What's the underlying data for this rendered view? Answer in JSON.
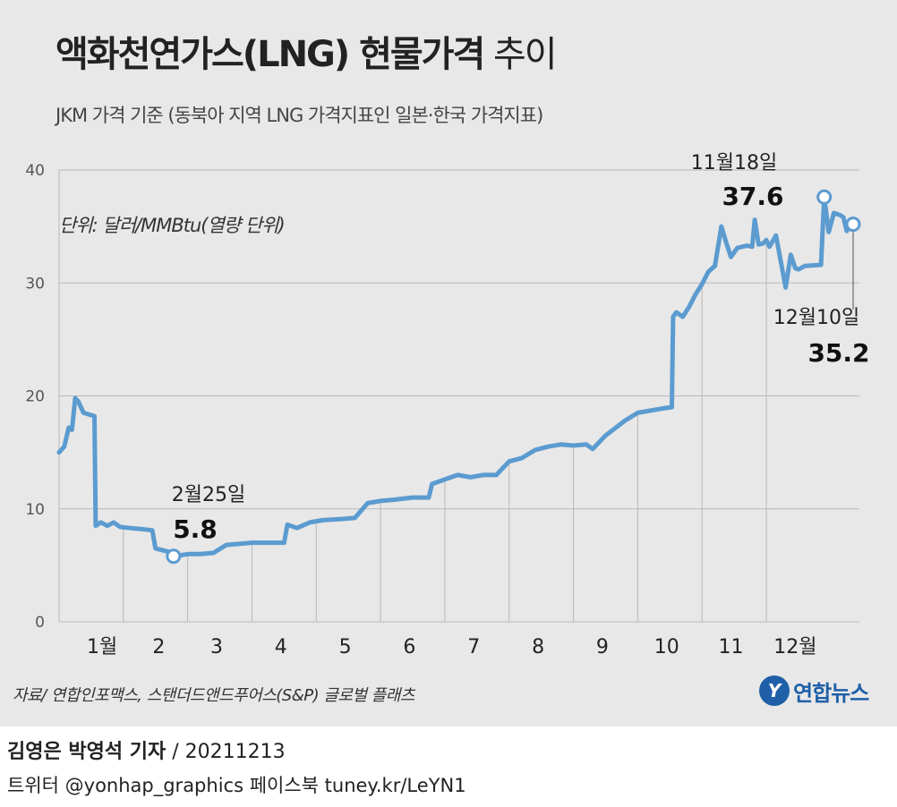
{
  "title_bold": "액화천연가스(LNG) 현물가격",
  "title_light": " 추이",
  "subtitle": "JKM 가격 기준 (동북아 지역 LNG 가격지표인 일본·한국 가격지표)",
  "unit": "단위: 달러/MMBtu(열량 단위)",
  "source": "자료/ 연합인포맥스, 스탠더드앤드푸어스(S&P) 글로벌 플래츠",
  "logo": {
    "mark": "Y",
    "text": "연합뉴스",
    "color": "#1e5fa8"
  },
  "credit": {
    "names": "김영은 박영석 기자",
    "date": " / 20211213"
  },
  "social": "트위터 @yonhap_graphics  페이스북 tuney.kr/LeYN1",
  "colors": {
    "line": "#5b9bd0",
    "grid": "#b8b8b8",
    "background": "#e8e8e8"
  },
  "chart_data": {
    "type": "line",
    "ylim": [
      0,
      40
    ],
    "y_ticks": [
      0,
      10,
      20,
      30,
      40
    ],
    "grid": "horizontal",
    "x_range": [
      0,
      12.35
    ],
    "month_labels": [
      {
        "label": "1월",
        "pos": 0.67
      },
      {
        "label": "2",
        "pos": 1.55
      },
      {
        "label": "3",
        "pos": 2.45
      },
      {
        "label": "4",
        "pos": 3.45
      },
      {
        "label": "5",
        "pos": 4.45
      },
      {
        "label": "6",
        "pos": 5.45
      },
      {
        "label": "7",
        "pos": 6.45
      },
      {
        "label": "8",
        "pos": 7.45
      },
      {
        "label": "9",
        "pos": 8.45
      },
      {
        "label": "10",
        "pos": 9.45
      },
      {
        "label": "11",
        "pos": 10.45
      },
      {
        "label": "12월",
        "pos": 11.45
      }
    ],
    "month_boundaries": [
      0,
      1,
      2,
      3,
      4,
      5,
      6,
      7,
      8,
      9,
      10,
      11
    ],
    "series": [
      {
        "points": [
          [
            0.0,
            15.0
          ],
          [
            0.08,
            15.5
          ],
          [
            0.15,
            17.2
          ],
          [
            0.2,
            17.0
          ],
          [
            0.25,
            19.8
          ],
          [
            0.3,
            19.5
          ],
          [
            0.38,
            18.5
          ],
          [
            0.5,
            18.3
          ],
          [
            0.55,
            18.2
          ],
          [
            0.57,
            8.5
          ],
          [
            0.65,
            8.8
          ],
          [
            0.75,
            8.5
          ],
          [
            0.85,
            8.8
          ],
          [
            0.95,
            8.4
          ],
          [
            1.1,
            8.3
          ],
          [
            1.3,
            8.2
          ],
          [
            1.45,
            8.1
          ],
          [
            1.5,
            6.5
          ],
          [
            1.7,
            6.2
          ],
          [
            1.78,
            5.8
          ],
          [
            1.9,
            5.9
          ],
          [
            2.0,
            6.0
          ],
          [
            2.2,
            6.0
          ],
          [
            2.4,
            6.1
          ],
          [
            2.6,
            6.8
          ],
          [
            2.8,
            6.9
          ],
          [
            3.0,
            7.0
          ],
          [
            3.3,
            7.0
          ],
          [
            3.5,
            7.0
          ],
          [
            3.55,
            8.6
          ],
          [
            3.7,
            8.3
          ],
          [
            3.9,
            8.8
          ],
          [
            4.1,
            9.0
          ],
          [
            4.4,
            9.1
          ],
          [
            4.6,
            9.2
          ],
          [
            4.8,
            10.5
          ],
          [
            5.0,
            10.7
          ],
          [
            5.2,
            10.8
          ],
          [
            5.5,
            11.0
          ],
          [
            5.75,
            11.0
          ],
          [
            5.8,
            12.2
          ],
          [
            6.0,
            12.6
          ],
          [
            6.2,
            13.0
          ],
          [
            6.4,
            12.8
          ],
          [
            6.6,
            13.0
          ],
          [
            6.8,
            13.0
          ],
          [
            7.0,
            14.2
          ],
          [
            7.2,
            14.5
          ],
          [
            7.4,
            15.2
          ],
          [
            7.6,
            15.5
          ],
          [
            7.8,
            15.7
          ],
          [
            8.0,
            15.6
          ],
          [
            8.2,
            15.7
          ],
          [
            8.3,
            15.3
          ],
          [
            8.5,
            16.5
          ],
          [
            8.8,
            17.8
          ],
          [
            9.0,
            18.5
          ],
          [
            9.2,
            18.7
          ],
          [
            9.4,
            18.9
          ],
          [
            9.53,
            19.0
          ],
          [
            9.55,
            27.0
          ],
          [
            9.6,
            27.4
          ],
          [
            9.7,
            27.0
          ],
          [
            9.8,
            27.9
          ],
          [
            9.9,
            29.0
          ],
          [
            10.0,
            29.9
          ],
          [
            10.1,
            31.0
          ],
          [
            10.2,
            31.5
          ],
          [
            10.3,
            35.0
          ],
          [
            10.38,
            33.5
          ],
          [
            10.45,
            32.3
          ],
          [
            10.55,
            33.1
          ],
          [
            10.7,
            33.3
          ],
          [
            10.78,
            33.2
          ],
          [
            10.82,
            35.6
          ],
          [
            10.88,
            33.4
          ],
          [
            10.95,
            33.5
          ],
          [
            11.0,
            33.8
          ],
          [
            11.05,
            33.2
          ],
          [
            11.15,
            34.2
          ],
          [
            11.3,
            29.6
          ],
          [
            11.38,
            32.5
          ],
          [
            11.45,
            31.3
          ],
          [
            11.5,
            31.2
          ],
          [
            11.6,
            31.5
          ],
          [
            11.85,
            31.6
          ],
          [
            11.9,
            37.6
          ],
          [
            11.97,
            34.5
          ],
          [
            12.05,
            36.2
          ],
          [
            12.15,
            36.0
          ],
          [
            12.2,
            35.8
          ],
          [
            12.25,
            34.6
          ],
          [
            12.3,
            35.0
          ],
          [
            12.35,
            35.2
          ]
        ]
      }
    ],
    "annotations": [
      {
        "date": "2월25일",
        "value": "5.8",
        "x": 1.78,
        "y": 5.8
      },
      {
        "date": "11월18일",
        "value": "37.6",
        "x": 11.9,
        "y": 37.6
      },
      {
        "date": "12월10일",
        "value": "35.2",
        "x": 12.35,
        "y": 35.2
      }
    ]
  }
}
